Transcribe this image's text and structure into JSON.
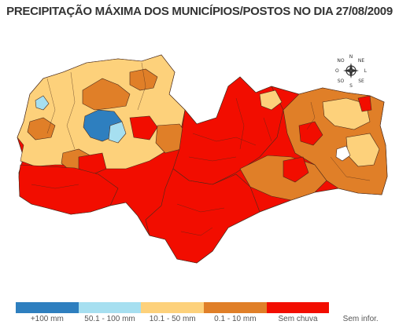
{
  "title": "PRECIPITAÇÃO MÁXIMA DOS MUNICÍPIOS/POSTOS NO DIA 27/08/2009",
  "compass": {
    "icon": "compass-rose-icon",
    "n": "N",
    "s": "S",
    "o": "O",
    "l": "L",
    "no": "NO",
    "ne": "NE",
    "so": "SO",
    "se": "SE"
  },
  "legend": [
    {
      "label": "+100 mm",
      "color": "#2e7fbf"
    },
    {
      "label": "50.1 - 100 mm",
      "color": "#a6dff0"
    },
    {
      "label": "10.1 - 50 mm",
      "color": "#fdd17b"
    },
    {
      "label": "0.1 - 10 mm",
      "color": "#e07f28"
    },
    {
      "label": "Sem chuva",
      "color": "#f20d00"
    },
    {
      "label": "Sem infor.",
      "color": "#ffffff"
    }
  ]
}
